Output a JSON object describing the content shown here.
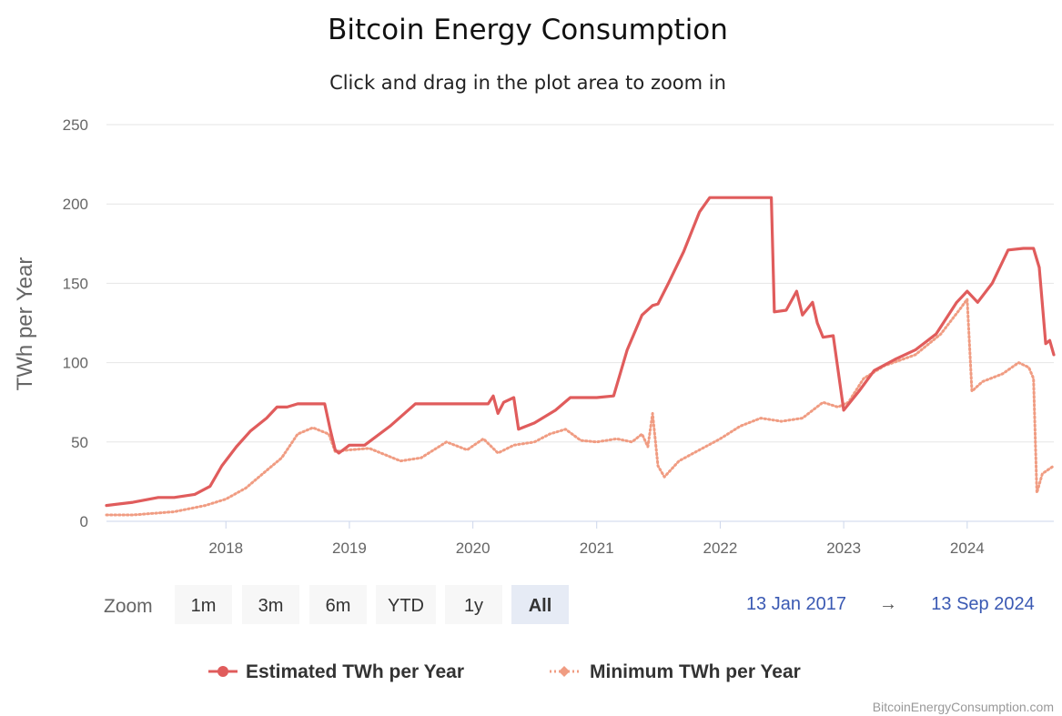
{
  "chart_data": {
    "type": "line",
    "title": "Bitcoin Energy Consumption",
    "subtitle": "Click and drag in the plot area to zoom in",
    "ylabel": "TWh per Year",
    "ylim": [
      0,
      250
    ],
    "y_ticks": [
      "0",
      "50",
      "100",
      "150",
      "200",
      "250"
    ],
    "xlim": [
      "2017-01-13",
      "2024-09-13"
    ],
    "x_ticks": [
      "2018",
      "2019",
      "2020",
      "2021",
      "2022",
      "2023",
      "2024"
    ],
    "grid": "horizontal",
    "legend_position": "bottom-center",
    "series": [
      {
        "name": "Estimated TWh per Year",
        "color": "#e05c5c",
        "style": "solid",
        "points": [
          [
            "2017-01-13",
            10
          ],
          [
            "2017-04-01",
            12
          ],
          [
            "2017-06-15",
            15
          ],
          [
            "2017-08-01",
            15
          ],
          [
            "2017-10-01",
            17
          ],
          [
            "2017-11-15",
            22
          ],
          [
            "2017-12-20",
            35
          ],
          [
            "2018-02-01",
            47
          ],
          [
            "2018-03-15",
            57
          ],
          [
            "2018-05-01",
            65
          ],
          [
            "2018-06-01",
            72
          ],
          [
            "2018-07-01",
            72
          ],
          [
            "2018-08-01",
            74
          ],
          [
            "2018-10-20",
            74
          ],
          [
            "2018-11-05",
            58
          ],
          [
            "2018-11-20",
            45
          ],
          [
            "2018-12-01",
            43
          ],
          [
            "2019-01-01",
            48
          ],
          [
            "2019-02-15",
            48
          ],
          [
            "2019-05-01",
            60
          ],
          [
            "2019-07-15",
            74
          ],
          [
            "2020-01-01",
            74
          ],
          [
            "2020-02-15",
            74
          ],
          [
            "2020-03-01",
            79
          ],
          [
            "2020-03-15",
            68
          ],
          [
            "2020-04-01",
            75
          ],
          [
            "2020-05-01",
            78
          ],
          [
            "2020-05-15",
            58
          ],
          [
            "2020-07-01",
            62
          ],
          [
            "2020-09-01",
            70
          ],
          [
            "2020-10-15",
            78
          ],
          [
            "2021-01-01",
            78
          ],
          [
            "2021-02-20",
            79
          ],
          [
            "2021-04-01",
            108
          ],
          [
            "2021-05-15",
            130
          ],
          [
            "2021-06-15",
            136
          ],
          [
            "2021-07-01",
            137
          ],
          [
            "2021-08-01",
            150
          ],
          [
            "2021-09-15",
            170
          ],
          [
            "2021-11-01",
            195
          ],
          [
            "2021-12-01",
            204
          ],
          [
            "2022-06-01",
            204
          ],
          [
            "2022-06-10",
            132
          ],
          [
            "2022-07-15",
            133
          ],
          [
            "2022-08-15",
            145
          ],
          [
            "2022-09-01",
            130
          ],
          [
            "2022-10-01",
            138
          ],
          [
            "2022-10-15",
            125
          ],
          [
            "2022-11-01",
            116
          ],
          [
            "2022-12-01",
            117
          ],
          [
            "2023-01-01",
            70
          ],
          [
            "2023-02-15",
            82
          ],
          [
            "2023-04-01",
            95
          ],
          [
            "2023-06-01",
            102
          ],
          [
            "2023-08-01",
            108
          ],
          [
            "2023-10-01",
            118
          ],
          [
            "2023-12-01",
            138
          ],
          [
            "2024-01-01",
            145
          ],
          [
            "2024-02-01",
            138
          ],
          [
            "2024-03-15",
            150
          ],
          [
            "2024-05-01",
            171
          ],
          [
            "2024-06-15",
            172
          ],
          [
            "2024-07-15",
            172
          ],
          [
            "2024-08-01",
            160
          ],
          [
            "2024-08-20",
            112
          ],
          [
            "2024-09-01",
            114
          ],
          [
            "2024-09-13",
            105
          ]
        ]
      },
      {
        "name": "Minimum TWh per Year",
        "color": "#f09c82",
        "style": "dotted",
        "points": [
          [
            "2017-01-13",
            4
          ],
          [
            "2017-04-01",
            4
          ],
          [
            "2017-08-01",
            6
          ],
          [
            "2017-11-01",
            10
          ],
          [
            "2018-01-01",
            14
          ],
          [
            "2018-03-01",
            21
          ],
          [
            "2018-05-01",
            32
          ],
          [
            "2018-06-15",
            40
          ],
          [
            "2018-08-01",
            55
          ],
          [
            "2018-09-15",
            59
          ],
          [
            "2018-11-01",
            55
          ],
          [
            "2018-11-20",
            44
          ],
          [
            "2019-01-01",
            45
          ],
          [
            "2019-03-01",
            46
          ],
          [
            "2019-06-01",
            38
          ],
          [
            "2019-08-01",
            40
          ],
          [
            "2019-10-15",
            50
          ],
          [
            "2019-12-15",
            45
          ],
          [
            "2020-02-01",
            52
          ],
          [
            "2020-03-15",
            43
          ],
          [
            "2020-05-01",
            48
          ],
          [
            "2020-07-01",
            50
          ],
          [
            "2020-08-15",
            55
          ],
          [
            "2020-10-01",
            58
          ],
          [
            "2020-11-15",
            51
          ],
          [
            "2021-01-01",
            50
          ],
          [
            "2021-03-01",
            52
          ],
          [
            "2021-04-15",
            50
          ],
          [
            "2021-05-15",
            55
          ],
          [
            "2021-06-01",
            47
          ],
          [
            "2021-06-15",
            68
          ],
          [
            "2021-07-01",
            35
          ],
          [
            "2021-07-20",
            28
          ],
          [
            "2021-09-01",
            38
          ],
          [
            "2021-11-01",
            45
          ],
          [
            "2022-01-01",
            52
          ],
          [
            "2022-03-01",
            60
          ],
          [
            "2022-05-01",
            65
          ],
          [
            "2022-07-01",
            63
          ],
          [
            "2022-09-01",
            65
          ],
          [
            "2022-11-01",
            75
          ],
          [
            "2022-12-15",
            72
          ],
          [
            "2023-01-15",
            75
          ],
          [
            "2023-03-01",
            90
          ],
          [
            "2023-05-01",
            98
          ],
          [
            "2023-08-01",
            105
          ],
          [
            "2023-10-15",
            118
          ],
          [
            "2023-12-15",
            135
          ],
          [
            "2024-01-01",
            140
          ],
          [
            "2024-01-15",
            82
          ],
          [
            "2024-02-15",
            88
          ],
          [
            "2024-04-15",
            93
          ],
          [
            "2024-06-01",
            100
          ],
          [
            "2024-07-01",
            97
          ],
          [
            "2024-07-15",
            90
          ],
          [
            "2024-07-25",
            18
          ],
          [
            "2024-08-10",
            30
          ],
          [
            "2024-09-13",
            35
          ]
        ]
      }
    ]
  },
  "range_selector": {
    "label": "Zoom",
    "buttons": [
      "1m",
      "3m",
      "6m",
      "YTD",
      "1y",
      "All"
    ],
    "selected": "All"
  },
  "date_range": {
    "from": "13 Jan 2017",
    "arrow": "→",
    "to": "13 Sep 2024"
  },
  "credits": "BitcoinEnergyConsumption.com"
}
